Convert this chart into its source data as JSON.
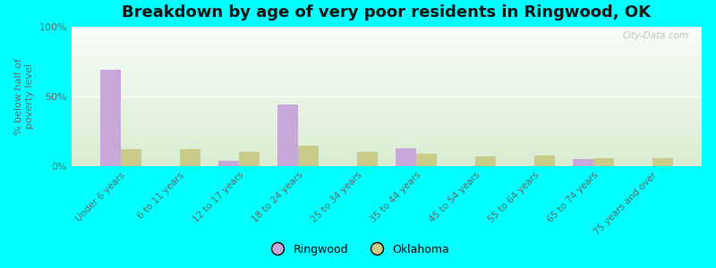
{
  "title": "Breakdown by age of very poor residents in Ringwood, OK",
  "ylabel": "% below half of\npoverty level",
  "categories": [
    "Under 6 years",
    "6 to 11 years",
    "12 to 17 years",
    "18 to 24 years",
    "25 to 34 years",
    "35 to 44 years",
    "45 to 54 years",
    "55 to 64 years",
    "65 to 74 years",
    "75 years and over"
  ],
  "ringwood_values": [
    69,
    0,
    4,
    44,
    0,
    13,
    0,
    0,
    5,
    0
  ],
  "oklahoma_values": [
    12,
    12,
    10,
    15,
    10,
    9,
    7,
    8,
    6,
    6
  ],
  "ringwood_color": "#c8a8d8",
  "oklahoma_color": "#c8cc88",
  "bg_color": "#00ffff",
  "plot_bg_top": "#f8fdf8",
  "plot_bg_bottom": "#d8ecd0",
  "ylim": [
    0,
    100
  ],
  "yticks": [
    0,
    50,
    100
  ],
  "ytick_labels": [
    "0%",
    "50%",
    "100%"
  ],
  "bar_width": 0.35,
  "title_fontsize": 13,
  "watermark": "City-Data.com"
}
